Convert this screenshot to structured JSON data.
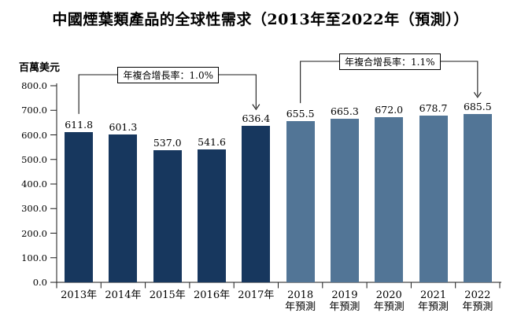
{
  "chart_data": {
    "type": "bar",
    "title": "中國煙葉類產品的全球性需求（2013年至2022年（預測））",
    "unit_label": "百萬美元",
    "ylabel": "百萬美元",
    "ylim": [
      0,
      800
    ],
    "ytick_step": 100,
    "ytick_labels": [
      "800.0",
      "700.0",
      "600.0",
      "500.0",
      "400.0",
      "300.0",
      "200.0",
      "100.0",
      "0.0"
    ],
    "grid": false,
    "bars": [
      {
        "label_lines": [
          "2013年"
        ],
        "value": 611.8,
        "series": "actual"
      },
      {
        "label_lines": [
          "2014年"
        ],
        "value": 601.3,
        "series": "actual"
      },
      {
        "label_lines": [
          "2015年"
        ],
        "value": 537.0,
        "series": "actual"
      },
      {
        "label_lines": [
          "2016年"
        ],
        "value": 541.6,
        "series": "actual"
      },
      {
        "label_lines": [
          "2017年"
        ],
        "value": 636.4,
        "series": "actual"
      },
      {
        "label_lines": [
          "2018",
          "年預測"
        ],
        "value": 655.5,
        "series": "forecast"
      },
      {
        "label_lines": [
          "2019",
          "年預測"
        ],
        "value": 665.3,
        "series": "forecast"
      },
      {
        "label_lines": [
          "2020",
          "年預測"
        ],
        "value": 672.0,
        "series": "forecast"
      },
      {
        "label_lines": [
          "2021",
          "年預測"
        ],
        "value": 678.7,
        "series": "forecast"
      },
      {
        "label_lines": [
          "2022",
          "年預測"
        ],
        "value": 685.5,
        "series": "forecast"
      }
    ],
    "colors": {
      "actual": "#17375e",
      "forecast": "#527596",
      "axis": "#1a1a1a"
    },
    "annotations": [
      {
        "label": "年複合增長率：1.0%",
        "from_bar": 0,
        "to_bar": 4
      },
      {
        "label": "年複合增長率：1.1%",
        "from_bar": 5,
        "to_bar": 9
      }
    ]
  }
}
